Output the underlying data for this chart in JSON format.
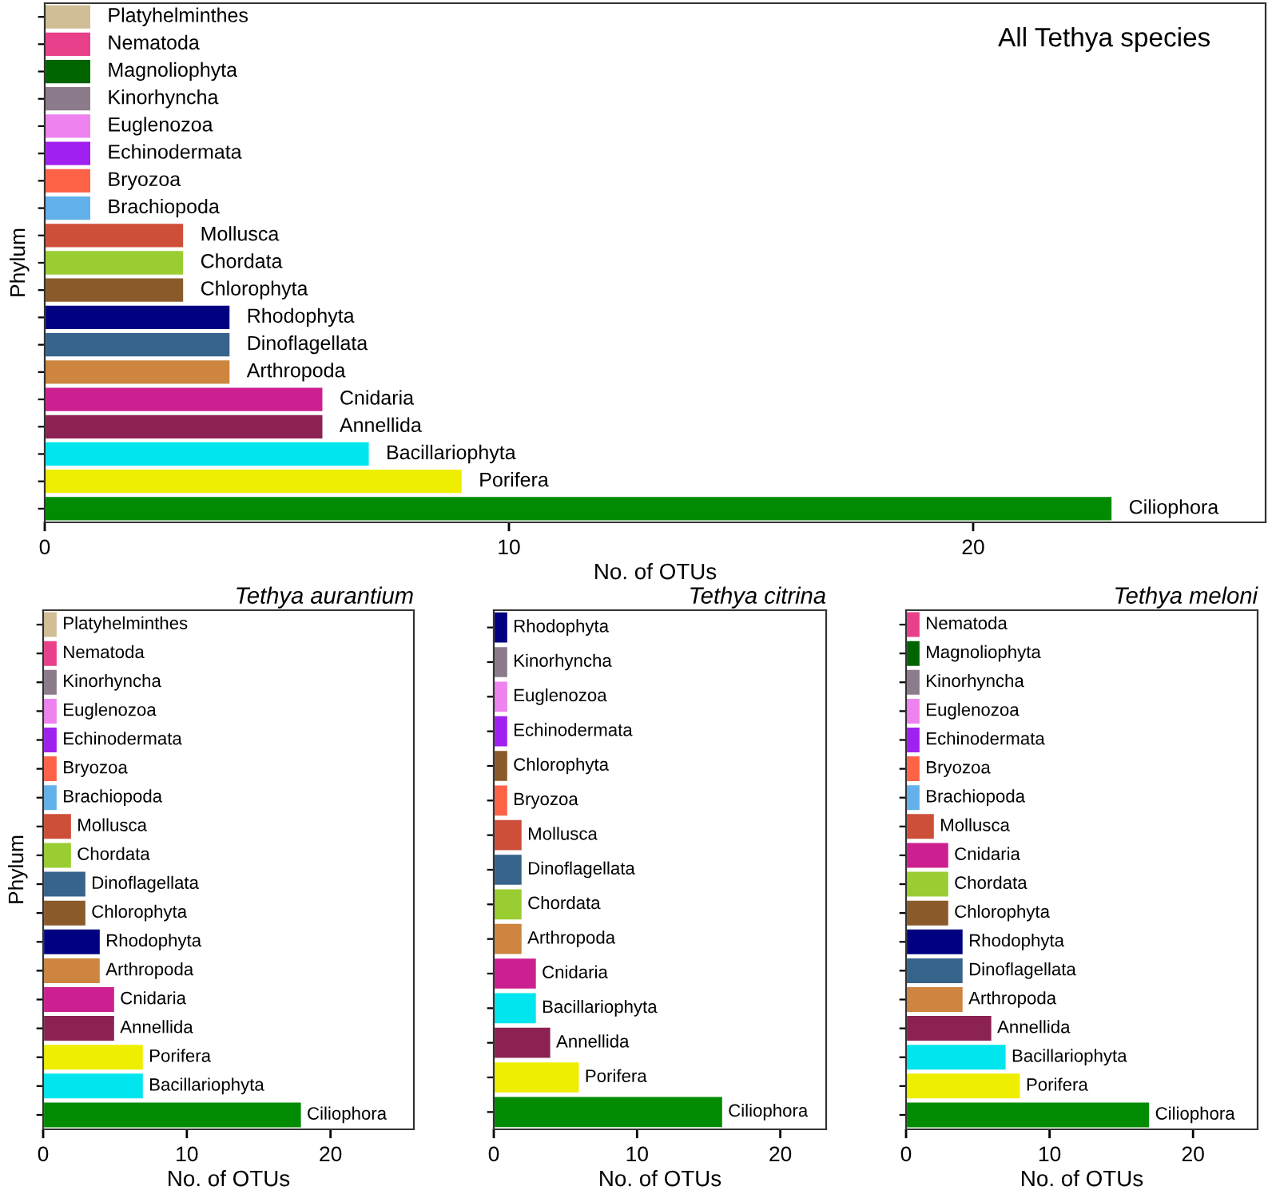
{
  "chart_data": [
    {
      "type": "bar",
      "orientation": "horizontal",
      "title": "All Tethya species",
      "xlabel": "No. of OTUs",
      "ylabel": "Phylum",
      "tick_labels": "x",
      "xlim": [
        0,
        26.3
      ],
      "xticks": [
        0,
        10,
        20
      ],
      "categories": [
        "Platyhelminthes",
        "Nematoda",
        "Magnoliophyta",
        "Kinorhyncha",
        "Euglenozoa",
        "Echinodermata",
        "Bryozoa",
        "Brachiopoda",
        "Mollusca",
        "Chordata",
        "Chlorophyta",
        "Rhodophyta",
        "Dinoflagellata",
        "Arthropoda",
        "Cnidaria",
        "Annellida",
        "Bacillariophyta",
        "Porifera",
        "Ciliophora"
      ],
      "values": [
        1,
        1,
        1,
        1,
        1,
        1,
        1,
        1,
        3,
        3,
        3,
        4,
        4,
        4,
        6,
        6,
        7,
        9,
        23
      ],
      "colors": [
        "#d2be96",
        "#e8408a",
        "#006400",
        "#8b7b8b",
        "#ee82ee",
        "#a020f0",
        "#ff6347",
        "#63b1ea",
        "#cd4f39",
        "#9acd32",
        "#8b5a2b",
        "#000080",
        "#36648b",
        "#cd853f",
        "#cd2090",
        "#8b2252",
        "#00e5ee",
        "#eeee00",
        "#008b00"
      ]
    },
    {
      "type": "bar",
      "orientation": "horizontal",
      "title": "Tethya aurantium",
      "xlabel": "No. of OTUs",
      "ylabel": "Phylum",
      "tick_labels": "x",
      "xlim": [
        0,
        25.8
      ],
      "xticks": [
        0,
        10,
        20
      ],
      "categories": [
        "Platyhelminthes",
        "Nematoda",
        "Kinorhyncha",
        "Euglenozoa",
        "Echinodermata",
        "Bryozoa",
        "Brachiopoda",
        "Mollusca",
        "Chordata",
        "Dinoflagellata",
        "Chlorophyta",
        "Rhodophyta",
        "Arthropoda",
        "Cnidaria",
        "Annellida",
        "Porifera",
        "Bacillariophyta",
        "Ciliophora"
      ],
      "values": [
        1,
        1,
        1,
        1,
        1,
        1,
        1,
        2,
        2,
        3,
        3,
        4,
        4,
        5,
        5,
        7,
        7,
        18
      ],
      "colors": [
        "#d2be96",
        "#e8408a",
        "#8b7b8b",
        "#ee82ee",
        "#a020f0",
        "#ff6347",
        "#63b1ea",
        "#cd4f39",
        "#9acd32",
        "#36648b",
        "#8b5a2b",
        "#000080",
        "#cd853f",
        "#cd2090",
        "#8b2252",
        "#eeee00",
        "#00e5ee",
        "#008b00"
      ]
    },
    {
      "type": "bar",
      "orientation": "horizontal",
      "title": "Tethya citrina",
      "xlabel": "No. of OTUs",
      "tick_labels": "x",
      "xlim": [
        0,
        23.2
      ],
      "xticks": [
        0,
        10,
        20
      ],
      "categories": [
        "Rhodophyta",
        "Kinorhyncha",
        "Euglenozoa",
        "Echinodermata",
        "Chlorophyta",
        "Bryozoa",
        "Mollusca",
        "Dinoflagellata",
        "Chordata",
        "Arthropoda",
        "Cnidaria",
        "Bacillariophyta",
        "Annellida",
        "Porifera",
        "Ciliophora"
      ],
      "values": [
        1,
        1,
        1,
        1,
        1,
        1,
        2,
        2,
        2,
        2,
        3,
        3,
        4,
        6,
        16
      ],
      "colors": [
        "#000080",
        "#8b7b8b",
        "#ee82ee",
        "#a020f0",
        "#8b5a2b",
        "#ff6347",
        "#cd4f39",
        "#36648b",
        "#9acd32",
        "#cd853f",
        "#cd2090",
        "#00e5ee",
        "#8b2252",
        "#eeee00",
        "#008b00"
      ]
    },
    {
      "type": "bar",
      "orientation": "horizontal",
      "title": "Tethya meloni",
      "xlabel": "No. of OTUs",
      "tick_labels": "x",
      "xlim": [
        0,
        24.5
      ],
      "xticks": [
        0,
        10,
        20
      ],
      "categories": [
        "Nematoda",
        "Magnoliophyta",
        "Kinorhyncha",
        "Euglenozoa",
        "Echinodermata",
        "Bryozoa",
        "Brachiopoda",
        "Mollusca",
        "Cnidaria",
        "Chordata",
        "Chlorophyta",
        "Rhodophyta",
        "Dinoflagellata",
        "Arthropoda",
        "Annellida",
        "Bacillariophyta",
        "Porifera",
        "Ciliophora"
      ],
      "values": [
        1,
        1,
        1,
        1,
        1,
        1,
        1,
        2,
        3,
        3,
        3,
        4,
        4,
        4,
        6,
        7,
        8,
        17
      ],
      "colors": [
        "#e8408a",
        "#006400",
        "#8b7b8b",
        "#ee82ee",
        "#a020f0",
        "#ff6347",
        "#63b1ea",
        "#cd4f39",
        "#cd2090",
        "#9acd32",
        "#8b5a2b",
        "#000080",
        "#36648b",
        "#cd853f",
        "#8b2252",
        "#00e5ee",
        "#eeee00",
        "#008b00"
      ]
    }
  ]
}
